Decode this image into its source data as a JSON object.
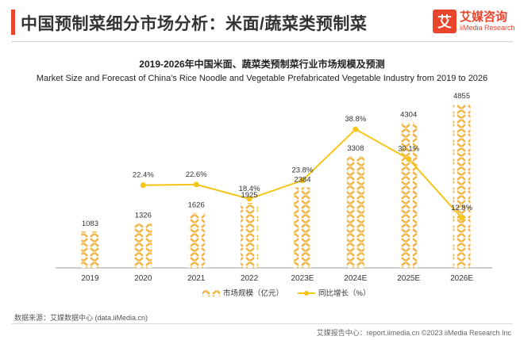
{
  "header": {
    "title": "中国预制菜细分市场分析：米面/蔬菜类预制菜",
    "logo_mark": "艾",
    "logo_cn": "艾媒咨询",
    "logo_en": "iiMedia Research"
  },
  "chart_data": {
    "type": "bar",
    "title": "2019-2026年中国米面、蔬菜类预制菜行业市场规模及预测",
    "subtitle": "Market Size and Forecast of China's Rice Noodle and Vegetable Prefabricated Vegetable Industry from 2019 to 2026",
    "categories": [
      "2019",
      "2020",
      "2021",
      "2022",
      "2023E",
      "2024E",
      "2025E",
      "2026E"
    ],
    "series": [
      {
        "name": "市场规模（亿元）",
        "type": "bar",
        "values": [
          1083,
          1326,
          1626,
          1925,
          2384,
          3308,
          4304,
          4855
        ],
        "labels": [
          "1083",
          "1326",
          "1626",
          "1925",
          "2384",
          "3308",
          "4304",
          "4855"
        ],
        "color": "#f2b544"
      },
      {
        "name": "同比增长（%）",
        "type": "line",
        "values": [
          null,
          22.4,
          22.6,
          18.4,
          23.8,
          38.8,
          30.1,
          12.8
        ],
        "labels": [
          "",
          "22.4%",
          "22.6%",
          "18.4%",
          "23.8%",
          "38.8%",
          "30.1%",
          "12.8%"
        ],
        "color": "#f5c518"
      }
    ],
    "grid": false,
    "legend_position": "bottom-center"
  },
  "footer": {
    "source": "数据来源：艾媒数据中心 (data.iiMedia.cn)",
    "right": "艾媒报告中心：report.iimedia.cn ©2023 iiMedia Research Inc"
  }
}
